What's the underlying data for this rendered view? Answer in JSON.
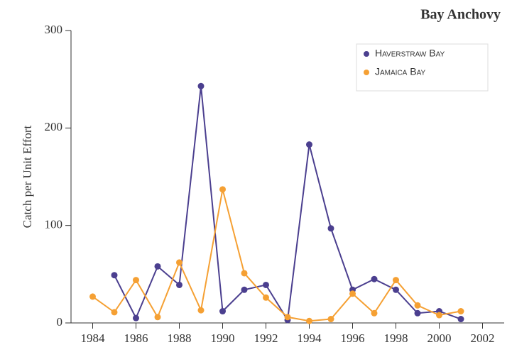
{
  "chart_data": {
    "type": "line",
    "title": "Bay Anchovy",
    "y_label": "Catch per Unit Effort",
    "x": [
      1984,
      1985,
      1986,
      1987,
      1988,
      1989,
      1990,
      1991,
      1992,
      1993,
      1994,
      1995,
      1996,
      1997,
      1998,
      1999,
      2000,
      2001
    ],
    "series": [
      {
        "name": "Haverstraw Bay",
        "color": "#4b3f8f",
        "values": [
          null,
          49,
          5,
          58,
          39,
          243,
          12,
          34,
          39,
          3,
          183,
          97,
          34,
          45,
          34,
          10,
          12,
          4
        ]
      },
      {
        "name": "Jamaica Bay",
        "color": "#f5a033",
        "values": [
          27,
          11,
          44,
          6,
          62,
          13,
          137,
          51,
          26,
          6,
          2,
          4,
          30,
          10,
          44,
          18,
          8,
          12
        ]
      }
    ],
    "xlim": [
      1983,
      2003
    ],
    "ylim": [
      0,
      300
    ],
    "xticks": [
      1984,
      1986,
      1988,
      1990,
      1992,
      1994,
      1996,
      1998,
      2000,
      2002
    ],
    "yticks": [
      0,
      100,
      200,
      300
    ],
    "grid": false,
    "legend": "top-right"
  }
}
